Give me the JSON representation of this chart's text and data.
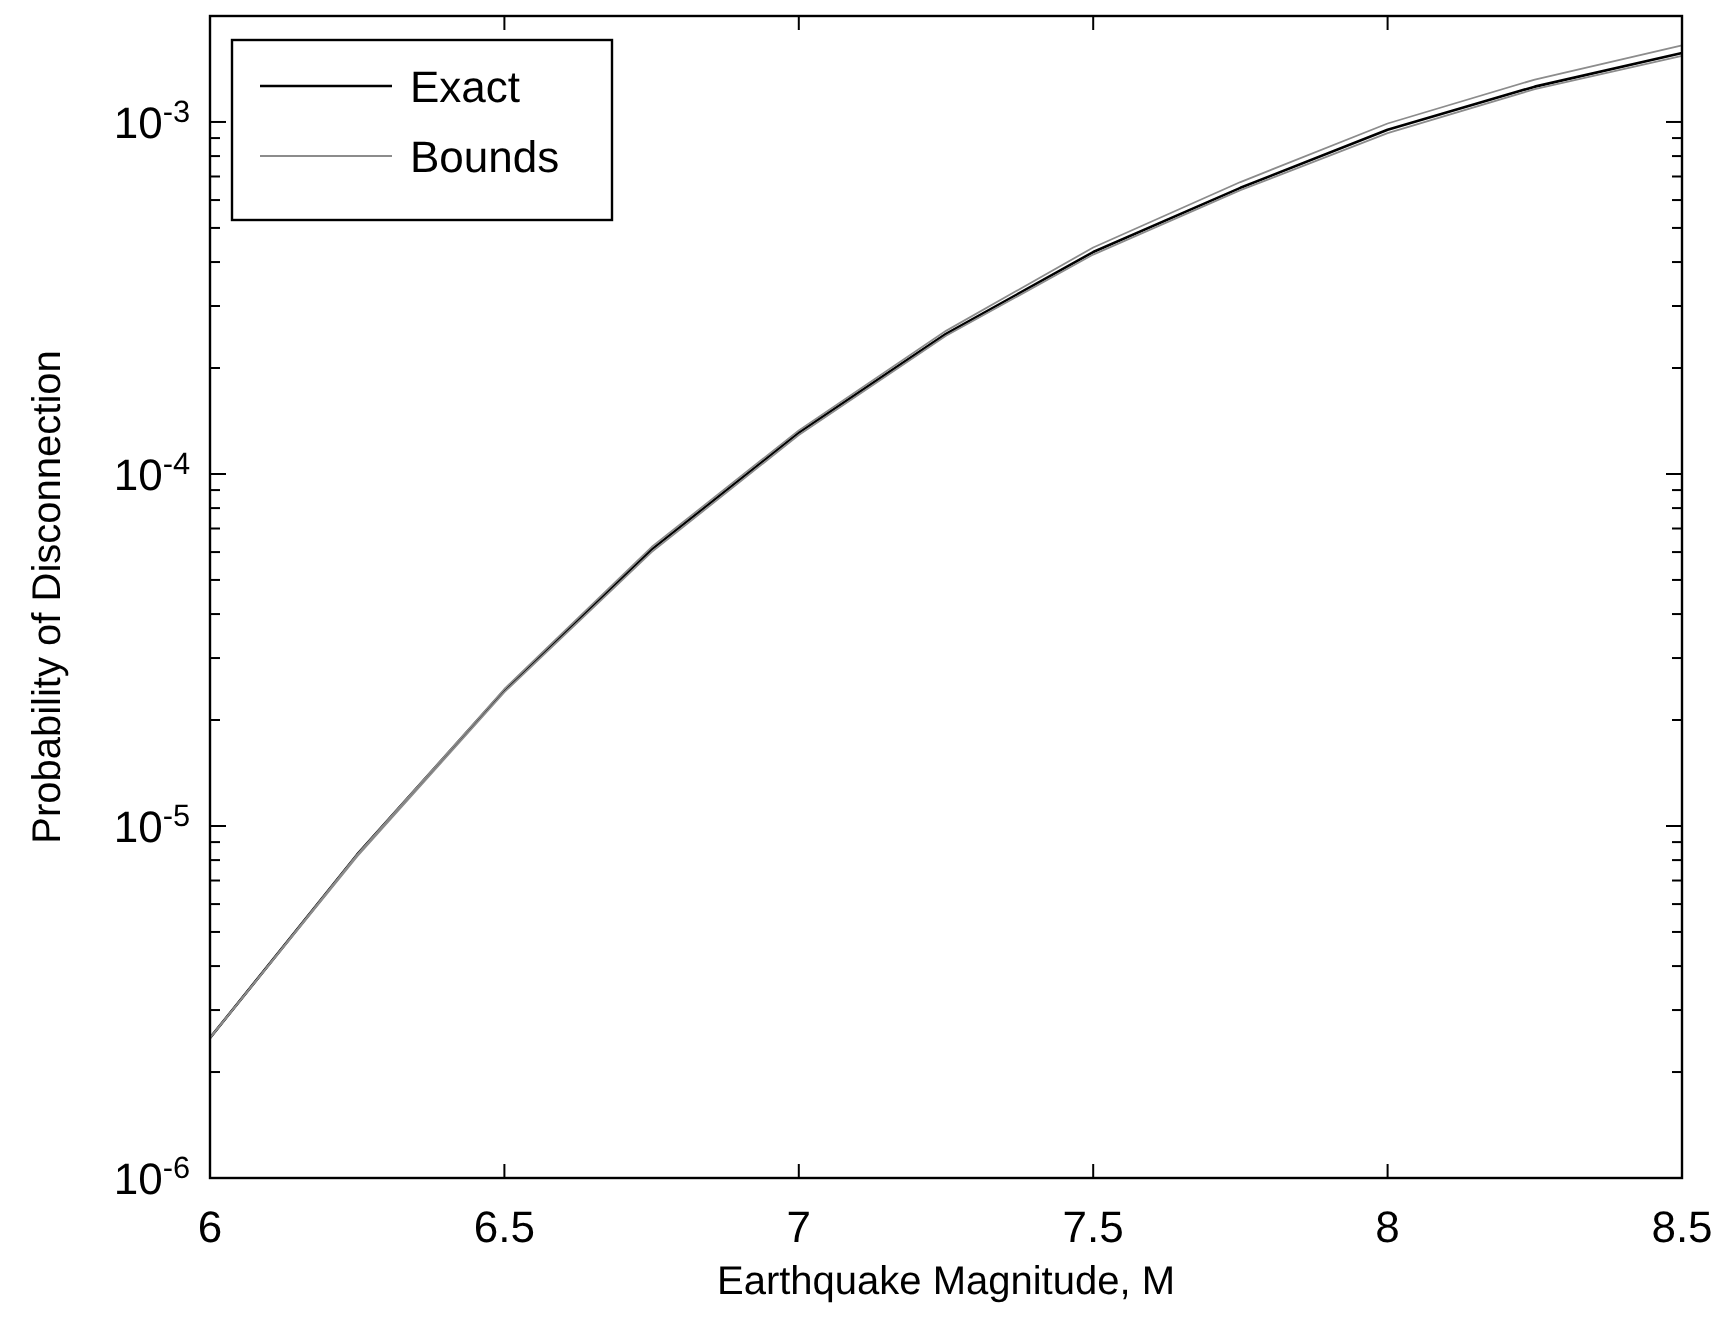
{
  "chart_data": {
    "type": "line",
    "xlabel": "Earthquake Magnitude, M",
    "ylabel": "Probability of Disconnection",
    "x": [
      6,
      6.25,
      6.5,
      6.75,
      7,
      7.25,
      7.5,
      7.75,
      8,
      8.25,
      8.5
    ],
    "series": [
      {
        "name": "Exact",
        "color": "#000000",
        "values": [
          2.5e-06,
          8.3e-06,
          2.43e-05,
          6.1e-05,
          0.000131,
          0.00025,
          0.000427,
          0.00065,
          0.00095,
          0.00126,
          0.00157
        ]
      },
      {
        "name": "Bounds",
        "color": "#8c8c8c",
        "values": [
          2.5e-06,
          8.3e-06,
          2.45e-05,
          6.2e-05,
          0.000133,
          0.000255,
          0.00044,
          0.000675,
          0.00099,
          0.00132,
          0.00165
        ]
      },
      {
        "color": "#8c8c8c",
        "values": [
          2.5e-06,
          8.2e-06,
          2.4e-05,
          6e-05,
          0.000129,
          0.000247,
          0.00042,
          0.00064,
          0.00093,
          0.00124,
          0.00154
        ]
      }
    ],
    "xlim": [
      6,
      8.5
    ],
    "xticks": [
      6,
      6.5,
      7,
      7.5,
      8,
      8.5
    ],
    "ylim": [
      1e-06,
      0.002
    ],
    "yticks": [
      {
        "value": 1e-06,
        "label": "10$^{-6}$"
      },
      {
        "value": 2e-06,
        "label": null
      },
      {
        "value": 3e-06,
        "label": null
      },
      {
        "value": 4e-06,
        "label": null
      },
      {
        "value": 5e-06,
        "label": null
      },
      {
        "value": 6e-06,
        "label": null
      },
      {
        "value": 7e-06,
        "label": null
      },
      {
        "value": 8e-06,
        "label": null
      },
      {
        "value": 9e-06,
        "label": null
      },
      {
        "value": 1e-05,
        "label": "10$^{-5}$"
      },
      {
        "value": 2e-05,
        "label": null
      },
      {
        "value": 3e-05,
        "label": null
      },
      {
        "value": 4e-05,
        "label": null
      },
      {
        "value": 5e-05,
        "label": null
      },
      {
        "value": 6e-05,
        "label": null
      },
      {
        "value": 7e-05,
        "label": null
      },
      {
        "value": 8e-05,
        "label": null
      },
      {
        "value": 9e-05,
        "label": null
      },
      {
        "value": 0.0001,
        "label": "10$^{-4}$"
      },
      {
        "value": 0.0002,
        "label": null
      },
      {
        "value": 0.0003,
        "label": null
      },
      {
        "value": 0.0004,
        "label": null
      },
      {
        "value": 0.0005,
        "label": null
      },
      {
        "value": 0.0006,
        "label": null
      },
      {
        "value": 0.0007,
        "label": null
      },
      {
        "value": 0.0008,
        "label": null
      },
      {
        "value": 0.0009,
        "label": null
      },
      {
        "value": 0.001,
        "label": "10$^{-3}$"
      },
      {
        "value": 0.002,
        "label": null
      }
    ],
    "log": "y",
    "grid": false,
    "legend": "top left",
    "marker": "none",
    "line_style": "solid"
  }
}
